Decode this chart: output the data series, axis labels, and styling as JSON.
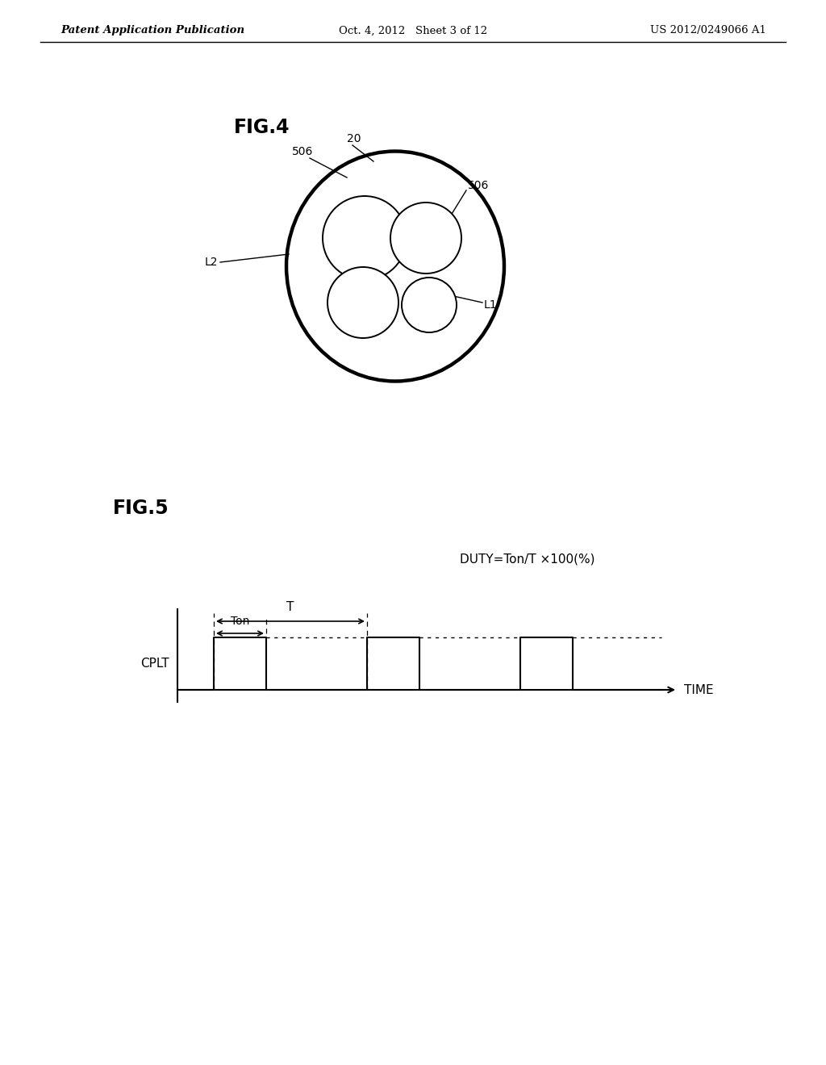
{
  "bg_color": "#ffffff",
  "header_left": "Patent Application Publication",
  "header_center": "Oct. 4, 2012   Sheet 3 of 12",
  "header_right": "US 2012/0249066 A1",
  "fig4_label": "FIG.4",
  "fig5_label": "FIG.5",
  "fig5_duty_text": "DUTY=Ton/T ×100(%)",
  "fig5_cplt_label": "CPLT",
  "fig5_time_label": "TIME"
}
